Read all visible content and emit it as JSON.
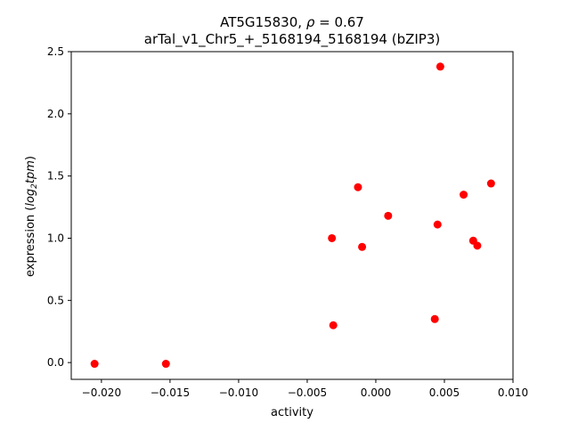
{
  "chart_data": {
    "type": "scatter",
    "title_line1_prefix": "AT5G15830, ",
    "title_line1_rho": "ρ",
    "title_line1_suffix": " = 0.67",
    "title_line2": "arTal_v1_Chr5_+_5168194_5168194 (bZIP3)",
    "xlabel": "activity",
    "ylabel_prefix": "expression (",
    "ylabel_log": "log",
    "ylabel_sub": "2",
    "ylabel_tpm": "tpm",
    "ylabel_suffix": ")",
    "xlim": [
      -0.0222,
      0.01
    ],
    "ylim": [
      -0.135,
      2.5
    ],
    "xticks": [
      -0.02,
      -0.015,
      -0.01,
      -0.005,
      0.0,
      0.005,
      0.01
    ],
    "xtick_labels": [
      "−0.020",
      "−0.015",
      "−0.010",
      "−0.005",
      "0.000",
      "0.005",
      "0.010"
    ],
    "yticks": [
      0.0,
      0.5,
      1.0,
      1.5,
      2.0,
      2.5
    ],
    "ytick_labels": [
      "0.0",
      "0.5",
      "1.0",
      "1.5",
      "2.0",
      "2.5"
    ],
    "grid": false,
    "marker_color": "#ff0000",
    "points": [
      {
        "x": -0.0205,
        "y": -0.01
      },
      {
        "x": -0.0153,
        "y": -0.01
      },
      {
        "x": -0.0031,
        "y": 0.3
      },
      {
        "x": -0.0032,
        "y": 1.0
      },
      {
        "x": -0.0013,
        "y": 1.41
      },
      {
        "x": -0.001,
        "y": 0.93
      },
      {
        "x": 0.0009,
        "y": 1.18
      },
      {
        "x": 0.0043,
        "y": 0.35
      },
      {
        "x": 0.0045,
        "y": 1.11
      },
      {
        "x": 0.0047,
        "y": 2.38
      },
      {
        "x": 0.0064,
        "y": 1.35
      },
      {
        "x": 0.0071,
        "y": 0.98
      },
      {
        "x": 0.0074,
        "y": 0.94
      },
      {
        "x": 0.0084,
        "y": 1.44
      }
    ]
  }
}
